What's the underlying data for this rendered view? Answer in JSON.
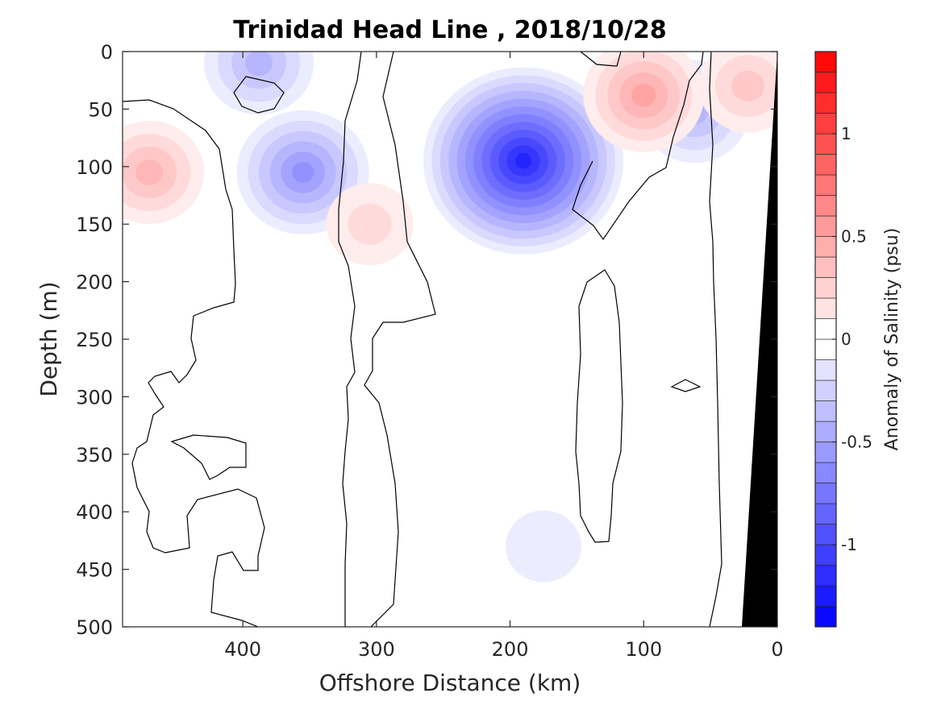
{
  "chart_data": {
    "type": "heatmap",
    "title": "Trinidad Head Line , 2018/10/28",
    "xlabel": "Offshore Distance (km)",
    "ylabel": "Depth (m)",
    "xlim": [
      490,
      0
    ],
    "ylim": [
      0,
      500
    ],
    "x_reversed": true,
    "y_reversed": true,
    "x_ticks": [
      400,
      300,
      200,
      100,
      0
    ],
    "y_ticks": [
      0,
      50,
      100,
      150,
      200,
      250,
      300,
      350,
      400,
      450,
      500
    ],
    "colorbar": {
      "label": "Anomaly of Salinity (psu)",
      "range": [
        -1.4,
        1.4
      ],
      "levels": 28,
      "ticks": [
        -1,
        -0.5,
        0,
        0.5,
        1
      ],
      "tick_labels": [
        "-1",
        "-0.5",
        "0",
        "0.5",
        "1"
      ],
      "color_min": "#0000ff",
      "color_zero": "#ffffff",
      "color_max": "#ff0000"
    },
    "anomaly_features": [
      {
        "x": 190,
        "y": 95,
        "value": -1.2
      },
      {
        "x": 355,
        "y": 105,
        "value": -0.55
      },
      {
        "x": 388,
        "y": 10,
        "value": -0.35
      },
      {
        "x": 62,
        "y": 52,
        "value": -0.4
      },
      {
        "x": 470,
        "y": 105,
        "value": 0.35
      },
      {
        "x": 100,
        "y": 38,
        "value": 0.45
      },
      {
        "x": 22,
        "y": 30,
        "value": 0.3
      },
      {
        "x": 305,
        "y": 150,
        "value": 0.15
      },
      {
        "x": 175,
        "y": 430,
        "value": -0.1
      }
    ],
    "land_color": "#000000"
  }
}
